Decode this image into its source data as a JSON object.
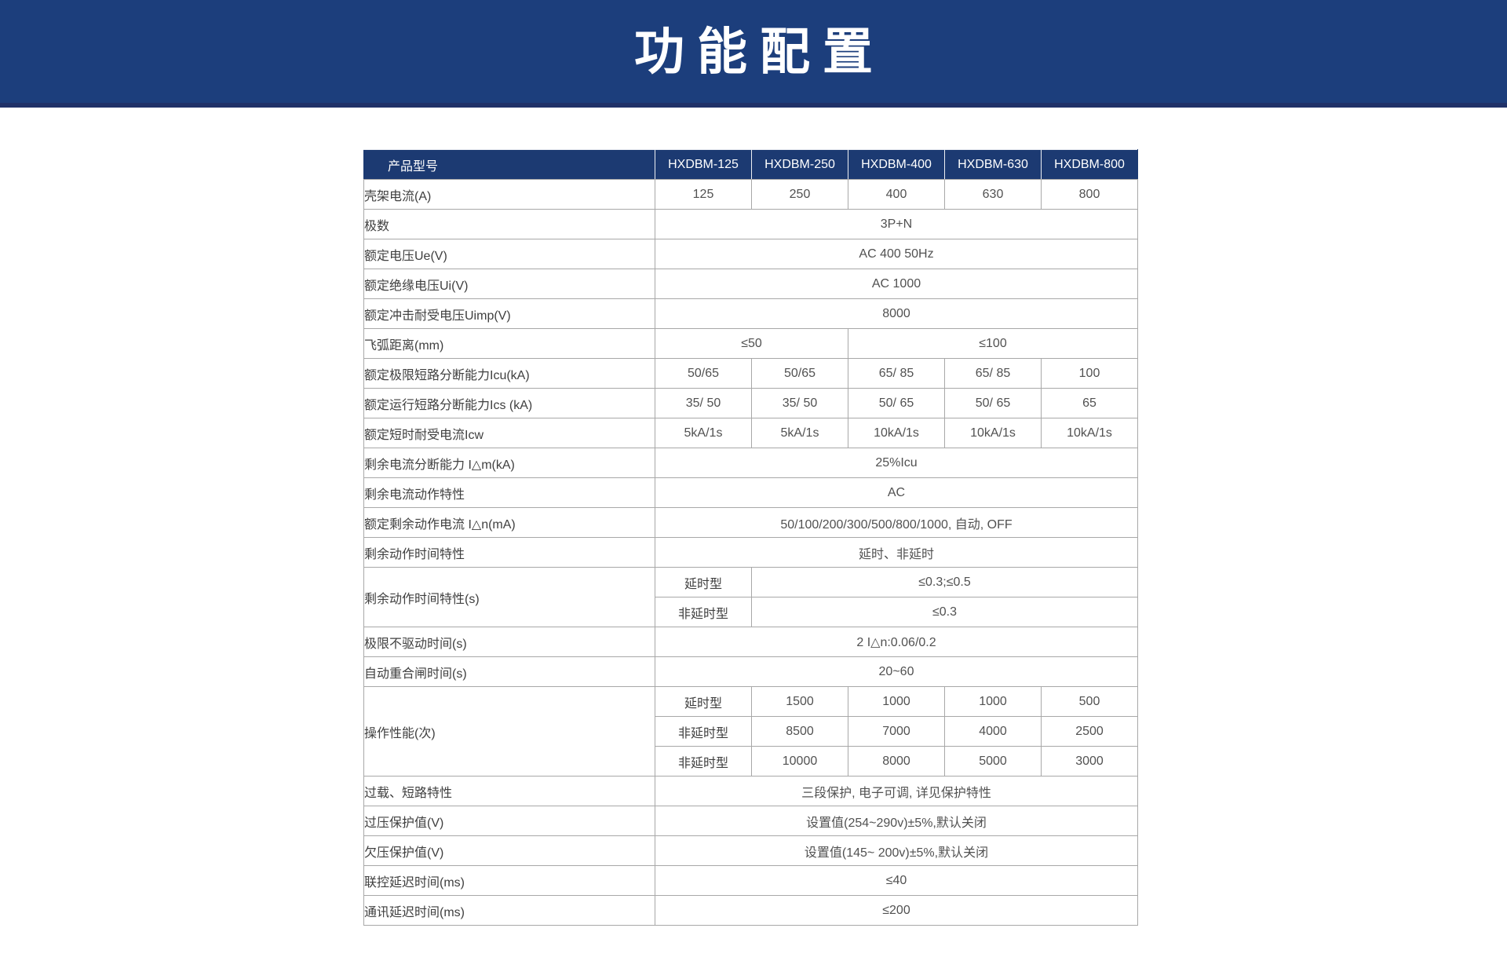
{
  "page": {
    "title": "功能配置"
  },
  "colors": {
    "banner_blue": "#1c3e7c",
    "banner_edge_blue": "#203168",
    "header_blue": "#1c3a72",
    "border_gray": "#a8a8a8",
    "text_gray": "#4a4a4a",
    "header_text": "#ffffff"
  },
  "table": {
    "header": {
      "label": "产品型号",
      "models": [
        "HXDBM-125",
        "HXDBM-250",
        "HXDBM-400",
        "HXDBM-630",
        "HXDBM-800"
      ]
    },
    "rows": [
      {
        "label": "壳架电流(A)",
        "cells": [
          {
            "t": "125"
          },
          {
            "t": "250"
          },
          {
            "t": "400"
          },
          {
            "t": "630"
          },
          {
            "t": "800"
          }
        ]
      },
      {
        "label": "极数",
        "cells": [
          {
            "t": "3P+N",
            "s": 5
          }
        ]
      },
      {
        "label": "额定电压Ue(V)",
        "cells": [
          {
            "t": "AC 400 50Hz",
            "s": 5
          }
        ]
      },
      {
        "label": "额定绝缘电压Ui(V)",
        "cells": [
          {
            "t": "AC 1000",
            "s": 5
          }
        ]
      },
      {
        "label": "额定冲击耐受电压Uimp(V)",
        "cells": [
          {
            "t": "8000",
            "s": 5
          }
        ]
      },
      {
        "label": "飞弧距离(mm)",
        "cells": [
          {
            "t": "≤50",
            "s": 2
          },
          {
            "t": "≤100",
            "s": 3
          }
        ]
      },
      {
        "label": "额定极限短路分断能力Icu(kA)",
        "cells": [
          {
            "t": "50/65"
          },
          {
            "t": "50/65"
          },
          {
            "t": "65/ 85"
          },
          {
            "t": "65/ 85"
          },
          {
            "t": "100"
          }
        ]
      },
      {
        "label": "额定运行短路分断能力Ics (kA)",
        "cells": [
          {
            "t": "35/ 50"
          },
          {
            "t": "35/ 50"
          },
          {
            "t": "50/ 65"
          },
          {
            "t": "50/ 65"
          },
          {
            "t": "65"
          }
        ]
      },
      {
        "label": "额定短时耐受电流Icw",
        "cells": [
          {
            "t": "5kA/1s"
          },
          {
            "t": "5kA/1s"
          },
          {
            "t": "10kA/1s"
          },
          {
            "t": "10kA/1s"
          },
          {
            "t": "10kA/1s"
          }
        ]
      },
      {
        "label": "剩余电流分断能力 I△m(kA)",
        "cells": [
          {
            "t": "25%Icu",
            "s": 5
          }
        ]
      },
      {
        "label": "剩余电流动作特性",
        "cells": [
          {
            "t": "AC",
            "s": 5
          }
        ]
      },
      {
        "label": "额定剩余动作电流 I△n(mA)",
        "cells": [
          {
            "t": "50/100/200/300/500/800/1000, 自动, OFF",
            "s": 5
          }
        ]
      },
      {
        "label": "剩余动作时间特性",
        "cells": [
          {
            "t": "延时、非延时",
            "s": 5
          }
        ]
      },
      {
        "label": "剩余动作时间特性(s)",
        "subrows": [
          {
            "cells": [
              {
                "t": "延时型",
                "sub": true
              },
              {
                "t": "≤0.3;≤0.5",
                "s": 4
              }
            ]
          },
          {
            "cells": [
              {
                "t": "非延时型",
                "sub": true
              },
              {
                "t": "≤0.3",
                "s": 4
              }
            ]
          }
        ]
      },
      {
        "label": "极限不驱动时间(s)",
        "cells": [
          {
            "t": "2 I△n:0.06/0.2",
            "s": 5
          }
        ]
      },
      {
        "label": "自动重合闸时间(s)",
        "cells": [
          {
            "t": "20~60",
            "s": 5
          }
        ]
      },
      {
        "label": "操作性能(次)",
        "subrows": [
          {
            "cells": [
              {
                "t": "延时型",
                "sub": true
              },
              {
                "t": "1500"
              },
              {
                "t": "1000"
              },
              {
                "t": "1000"
              },
              {
                "t": "500"
              }
            ]
          },
          {
            "cells": [
              {
                "t": "非延时型",
                "sub": true
              },
              {
                "t": "8500"
              },
              {
                "t": "7000"
              },
              {
                "t": "4000"
              },
              {
                "t": "2500"
              }
            ]
          },
          {
            "cells": [
              {
                "t": "非延时型",
                "sub": true
              },
              {
                "t": "10000"
              },
              {
                "t": "8000"
              },
              {
                "t": "5000"
              },
              {
                "t": "3000"
              }
            ]
          }
        ]
      },
      {
        "label": "过载、短路特性",
        "cells": [
          {
            "t": "三段保护, 电子可调, 详见保护特性",
            "s": 5
          }
        ]
      },
      {
        "label": "过压保护值(V)",
        "cells": [
          {
            "t": "设置值(254~290v)±5%,默认关闭",
            "s": 5
          }
        ]
      },
      {
        "label": "欠压保护值(V)",
        "cells": [
          {
            "t": "设置值(145~ 200v)±5%,默认关闭",
            "s": 5
          }
        ]
      },
      {
        "label": "联控延迟时间(ms)",
        "cells": [
          {
            "t": "≤40",
            "s": 5
          }
        ]
      },
      {
        "label": "通讯延迟时间(ms)",
        "cells": [
          {
            "t": "≤200",
            "s": 5
          }
        ]
      }
    ]
  }
}
